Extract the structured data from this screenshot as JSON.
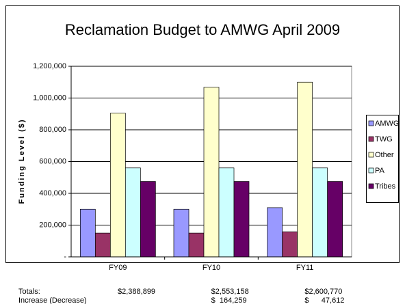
{
  "chart_data": {
    "type": "bar",
    "title": "Reclamation Budget to AMWG April 2009",
    "y_label": "Funding Level ($)",
    "categories": [
      "FY09",
      "FY10",
      "FY11"
    ],
    "series": [
      {
        "name": "AMWG",
        "color": "#9999ff",
        "values": [
          300000,
          300000,
          310000
        ]
      },
      {
        "name": "TWG",
        "color": "#993366",
        "values": [
          150000,
          150000,
          158000
        ]
      },
      {
        "name": "Other",
        "color": "#ffffcc",
        "values": [
          905000,
          1068000,
          1100000
        ]
      },
      {
        "name": "PA",
        "color": "#ccffff",
        "values": [
          560000,
          560000,
          560000
        ]
      },
      {
        "name": "Tribes",
        "color": "#660066",
        "values": [
          475000,
          475000,
          475000
        ]
      }
    ],
    "ylim": [
      0,
      1200000
    ],
    "yticks": [
      {
        "value": 0,
        "label": "-"
      },
      {
        "value": 200000,
        "label": "200,000"
      },
      {
        "value": 400000,
        "label": "400,000"
      },
      {
        "value": 600000,
        "label": "600,000"
      },
      {
        "value": 800000,
        "label": "800,000"
      },
      {
        "value": 1000000,
        "label": "1,000,000"
      },
      {
        "value": 1200000,
        "label": "1,200,000"
      }
    ],
    "grid": true,
    "legend": "right"
  },
  "table": {
    "rows": [
      {
        "label": "Totals:",
        "cells": [
          "$2,388,899",
          "$2,553,158",
          "$2,600,770"
        ]
      },
      {
        "label": "Increase (Decrease)",
        "cells": [
          "$  164,259",
          "$      47,612"
        ]
      }
    ]
  }
}
